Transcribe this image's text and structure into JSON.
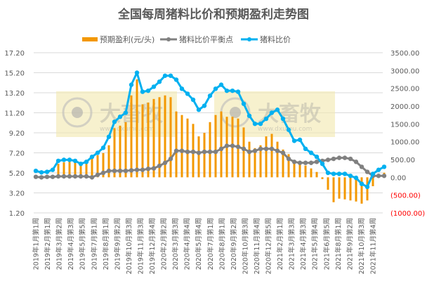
{
  "chart_data": {
    "type": "bar+line",
    "title": "全国每周猪料比价和预期盈利走势图",
    "legend": [
      "预期盈利(元/头)",
      "猪料比价平衡点",
      "猪料比价"
    ],
    "legend_position": "top",
    "watermark": {
      "text": "大畜牧",
      "url": "www.dxumu.com"
    },
    "grid": true,
    "y_left": {
      "ticks": [
        "17.20",
        "15.20",
        "13.20",
        "11.20",
        "9.20",
        "7.20",
        "5.20",
        "3.20",
        "1.20"
      ],
      "range": [
        1.2,
        17.2
      ]
    },
    "y_right": {
      "ticks": [
        "3500.00",
        "3000.00",
        "2500.00",
        "2000.00",
        "1500.00",
        "1000.00",
        "500.00",
        "0.00",
        "(500.00)",
        "(1000.00)"
      ],
      "range": [
        -1000,
        3500
      ]
    },
    "x_ticks": [
      "2019年1月第1周",
      "2019年2月第1周",
      "2019年3月第2周",
      "2019年4月第3周",
      "2019年5月第5周",
      "2019年7月第1周",
      "2019年8月第1周",
      "2019年9月第2周",
      "2019年10月第3周",
      "2019年11月第3周",
      "2019年12月第4周",
      "2020年2月第2周",
      "2020年3月第3周",
      "2020年4月第4周",
      "2020年5月第4周",
      "2020年7月第1周",
      "2020年8月第1周",
      "2020年9月第2周",
      "2020年10月第3周",
      "2020年11月第4周",
      "2020年12月第5周",
      "2021年2月第1周",
      "2021年3月第3周",
      "2021年4月第3周",
      "2021年5月第4周",
      "2021年6月第5周",
      "2021年8月第1周",
      "2021年9月第2周",
      "2021年10月第3周",
      "2021年11月第4周"
    ],
    "series": [
      {
        "name": "预期盈利(元/头)",
        "type": "bar",
        "axis": "right",
        "color": "#f39800",
        "values": [
          0,
          -20,
          0,
          30,
          380,
          420,
          430,
          420,
          320,
          380,
          550,
          620,
          680,
          900,
          1380,
          1450,
          1550,
          2300,
          2750,
          2050,
          2100,
          2200,
          2250,
          2300,
          2250,
          1850,
          1750,
          1650,
          1500,
          1150,
          1250,
          1550,
          1750,
          1850,
          1700,
          1700,
          1650,
          1400,
          1000,
          820,
          900,
          1150,
          1220,
          1000,
          780,
          650,
          450,
          420,
          330,
          250,
          150,
          -50,
          -350,
          -700,
          -600,
          -620,
          -650,
          -680,
          -740,
          -650,
          -250,
          0,
          130
        ]
      },
      {
        "name": "猪料比价平衡点",
        "type": "line",
        "axis": "left",
        "color": "#808080",
        "values": [
          4.8,
          4.75,
          4.8,
          4.8,
          4.85,
          4.85,
          4.85,
          4.85,
          4.85,
          4.85,
          4.75,
          5.0,
          5.2,
          5.4,
          5.4,
          5.4,
          5.4,
          5.45,
          5.5,
          5.5,
          5.6,
          5.65,
          5.9,
          6.2,
          6.6,
          7.4,
          7.4,
          7.3,
          7.3,
          7.2,
          7.3,
          7.3,
          7.3,
          7.6,
          7.9,
          7.9,
          7.8,
          7.6,
          7.3,
          7.4,
          7.6,
          7.6,
          7.6,
          7.4,
          7.2,
          6.6,
          6.3,
          6.2,
          6.2,
          6.2,
          6.3,
          6.4,
          6.5,
          6.6,
          6.7,
          6.7,
          6.6,
          6.3,
          5.8,
          5.3,
          4.9,
          4.9,
          4.9
        ]
      },
      {
        "name": "猪料比价",
        "type": "line",
        "axis": "left",
        "color": "#00b0f0",
        "values": [
          5.4,
          5.25,
          5.3,
          5.5,
          6.4,
          6.5,
          6.5,
          6.4,
          6.1,
          6.3,
          6.8,
          7.2,
          7.7,
          8.8,
          10.3,
          10.8,
          11.2,
          14.0,
          15.2,
          13.3,
          13.4,
          13.8,
          14.3,
          14.9,
          14.9,
          14.5,
          13.6,
          13.1,
          12.5,
          11.5,
          11.9,
          12.9,
          13.6,
          14.0,
          13.4,
          13.4,
          13.3,
          12.1,
          10.9,
          10.1,
          10.1,
          10.6,
          11.2,
          11.5,
          10.6,
          9.5,
          8.4,
          8.5,
          7.6,
          7.2,
          6.8,
          6.1,
          5.2,
          5.1,
          5.1,
          5.1,
          4.9,
          4.7,
          4.1,
          3.8,
          5.1,
          5.5,
          5.8
        ]
      }
    ]
  }
}
